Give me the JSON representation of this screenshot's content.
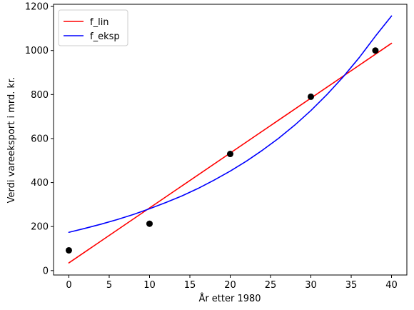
{
  "chart_data": {
    "type": "line",
    "title": "",
    "xlabel": "År etter 1980",
    "ylabel": "Verdi vareeksport i mrd. kr.",
    "xlim": [
      -1.9,
      41.9
    ],
    "ylim": [
      -20,
      1210
    ],
    "xticks": [
      0,
      5,
      10,
      15,
      20,
      25,
      30,
      35,
      40
    ],
    "yticks": [
      0,
      200,
      400,
      600,
      800,
      1000,
      1200
    ],
    "grid": false,
    "legend_position": "top-left",
    "series": [
      {
        "name": "f_lin",
        "kind": "line",
        "color": "#ff0000",
        "x": [
          0,
          40
        ],
        "y": [
          35,
          1033
        ]
      },
      {
        "name": "f_eksp",
        "kind": "line",
        "color": "#0000ff",
        "x": [
          0,
          2,
          4,
          6,
          8,
          10,
          12,
          14,
          16,
          18,
          20,
          22,
          24,
          26,
          28,
          30,
          32,
          34,
          36,
          38,
          40
        ],
        "y": [
          174,
          192,
          211,
          232,
          255,
          281,
          309,
          339,
          373,
          411,
          452,
          497,
          547,
          601,
          661,
          727,
          800,
          880,
          968,
          1065,
          1157
        ]
      },
      {
        "kind": "scatter",
        "color": "#000000",
        "x": [
          0,
          10,
          20,
          30,
          38
        ],
        "y": [
          92,
          213,
          530,
          790,
          1000
        ]
      }
    ]
  }
}
